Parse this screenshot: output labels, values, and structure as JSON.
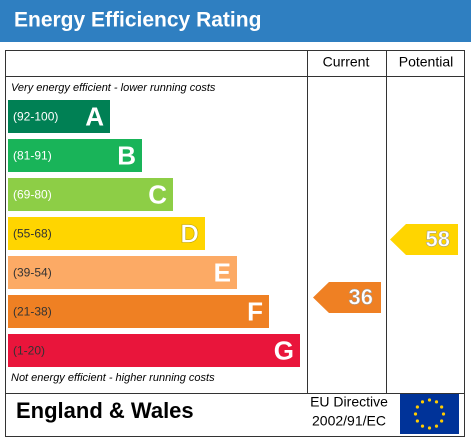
{
  "title": "Energy Efficiency Rating",
  "columns": {
    "current": "Current",
    "potential": "Potential"
  },
  "top_note": "Very energy efficient - lower running costs",
  "bands": [
    {
      "range": "(92-100)",
      "letter": "A",
      "color": "#008054"
    },
    {
      "range": "(81-91)",
      "letter": "B",
      "color": "#19b459"
    },
    {
      "range": "(69-80)",
      "letter": "C",
      "color": "#8dce46"
    },
    {
      "range": "(55-68)",
      "letter": "D",
      "color": "#ffd500"
    },
    {
      "range": "(39-54)",
      "letter": "E",
      "color": "#fcaa65"
    },
    {
      "range": "(21-38)",
      "letter": "F",
      "color": "#ef8023"
    },
    {
      "range": "(1-20)",
      "letter": "G",
      "color": "#e9153b"
    }
  ],
  "current": {
    "value": 36,
    "color": "#ef8023"
  },
  "potential": {
    "value": 58,
    "color": "#ffd500"
  },
  "bottom_note": "Not energy efficient - higher running costs",
  "footer": {
    "region": "England & Wales",
    "directive_line1": "EU Directive",
    "directive_line2": "2002/91/EC"
  }
}
